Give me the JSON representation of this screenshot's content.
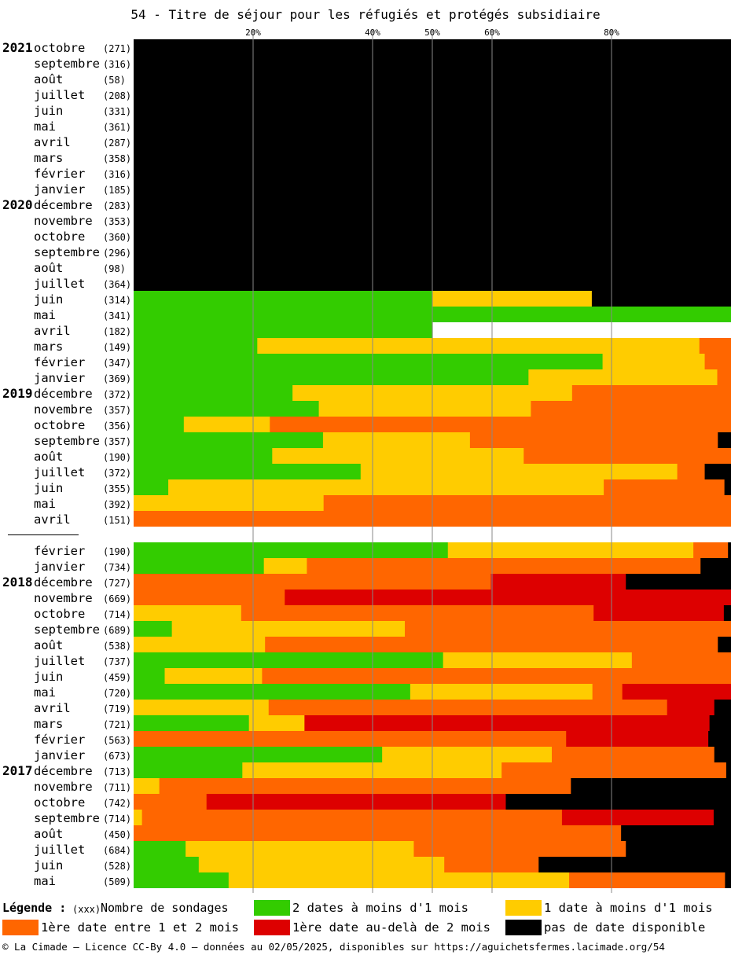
{
  "title": "54 - Titre de séjour pour les réfugiés et protégés subsidiaire",
  "legend": {
    "title": "Légende :",
    "count_marker": "(xxx)",
    "count_label": "Nombre de sondages",
    "items": [
      {
        "label": "2 dates à moins d'1 mois",
        "color": "#33cc00"
      },
      {
        "label": "1 date à moins d'1 mois",
        "color": "#ffcc00"
      },
      {
        "label": "1ère date entre 1 et 2 mois",
        "color": "#ff6600"
      },
      {
        "label": "1ère date au-delà de 2 mois",
        "color": "#dd0000"
      },
      {
        "label": "pas de date disponible",
        "color": "#000000"
      }
    ]
  },
  "footer": "© La Cimade – Licence CC-By 4.0 – données au 02/05/2025, disponibles sur https://aguichetsfermes.lacimade.org/54",
  "chart_data": {
    "type": "bar",
    "orientation": "horizontal-stacked-100",
    "title": "54 - Titre de séjour pour les réfugiés et protégés subsidiaire",
    "xlim": [
      0,
      100
    ],
    "xticks": [
      {
        "value": 20,
        "label": "20%"
      },
      {
        "value": 40,
        "label": "40%"
      },
      {
        "value": 50,
        "label": "50%"
      },
      {
        "value": 60,
        "label": "60%"
      },
      {
        "value": 80,
        "label": "80%"
      }
    ],
    "grid": "vertical lines at ticks",
    "series": [
      {
        "name": "2 dates à moins d'1 mois",
        "color": "#33cc00"
      },
      {
        "name": "1 date à moins d'1 mois",
        "color": "#ffcc00"
      },
      {
        "name": "1ère date entre 1 et 2 mois",
        "color": "#ff6600"
      },
      {
        "name": "1ère date au-delà de 2 mois",
        "color": "#dd0000"
      },
      {
        "name": "pas de date disponible",
        "color": "#000000"
      }
    ],
    "rows": [
      {
        "year": "2021",
        "month": "octobre",
        "count": "(271)",
        "values": [
          0,
          0,
          0,
          0,
          100
        ]
      },
      {
        "year": "",
        "month": "septembre",
        "count": "(316)",
        "values": [
          0,
          0,
          0,
          0,
          100
        ]
      },
      {
        "year": "",
        "month": "août",
        "count": "(58)",
        "values": [
          0,
          0,
          0,
          0,
          100
        ]
      },
      {
        "year": "",
        "month": "juillet",
        "count": "(208)",
        "values": [
          0,
          0,
          0,
          0,
          100
        ]
      },
      {
        "year": "",
        "month": "juin",
        "count": "(331)",
        "values": [
          0,
          0,
          0,
          0,
          100
        ]
      },
      {
        "year": "",
        "month": "mai",
        "count": "(361)",
        "values": [
          0,
          0,
          0,
          0,
          100
        ]
      },
      {
        "year": "",
        "month": "avril",
        "count": "(287)",
        "values": [
          0,
          0,
          0,
          0,
          100
        ]
      },
      {
        "year": "",
        "month": "mars",
        "count": "(358)",
        "values": [
          0,
          0,
          0,
          0,
          100
        ]
      },
      {
        "year": "",
        "month": "février",
        "count": "(316)",
        "values": [
          0,
          0,
          0,
          0,
          100
        ]
      },
      {
        "year": "",
        "month": "janvier",
        "count": "(185)",
        "values": [
          0,
          0,
          0,
          0,
          100
        ]
      },
      {
        "year": "2020",
        "month": "décembre",
        "count": "(283)",
        "values": [
          0,
          0,
          0,
          0,
          100
        ]
      },
      {
        "year": "",
        "month": "novembre",
        "count": "(353)",
        "values": [
          0,
          0,
          0,
          0,
          100
        ]
      },
      {
        "year": "",
        "month": "octobre",
        "count": "(360)",
        "values": [
          0,
          0,
          0,
          0,
          100
        ]
      },
      {
        "year": "",
        "month": "septembre",
        "count": "(296)",
        "values": [
          0,
          0,
          0,
          0,
          100
        ]
      },
      {
        "year": "",
        "month": "août",
        "count": "(98)",
        "values": [
          0,
          0,
          0,
          0,
          100
        ]
      },
      {
        "year": "",
        "month": "juillet",
        "count": "(364)",
        "values": [
          0,
          0,
          0,
          0,
          100
        ]
      },
      {
        "year": "",
        "month": "juin",
        "count": "(314)",
        "values": [
          50.0,
          26.7,
          0,
          0,
          23.3
        ]
      },
      {
        "year": "",
        "month": "mai",
        "count": "(341)",
        "values": [
          100,
          0,
          0,
          0,
          0
        ]
      },
      {
        "year": "",
        "month": "avril",
        "count": "(182)",
        "values": [
          50.0,
          0,
          0,
          0,
          0
        ]
      },
      {
        "year": "",
        "month": "mars",
        "count": "(149)",
        "values": [
          20.7,
          74.0,
          5.3,
          0,
          0
        ]
      },
      {
        "year": "",
        "month": "février",
        "count": "(347)",
        "values": [
          78.5,
          17.1,
          4.4,
          0,
          0
        ]
      },
      {
        "year": "",
        "month": "janvier",
        "count": "(369)",
        "values": [
          66.1,
          31.6,
          2.3,
          0,
          0
        ]
      },
      {
        "year": "2019",
        "month": "décembre",
        "count": "(372)",
        "values": [
          26.6,
          46.8,
          26.6,
          0,
          0
        ]
      },
      {
        "year": "",
        "month": "novembre",
        "count": "(357)",
        "values": [
          31.0,
          35.5,
          33.5,
          0,
          0
        ]
      },
      {
        "year": "",
        "month": "octobre",
        "count": "(356)",
        "values": [
          8.4,
          14.4,
          77.2,
          0,
          0
        ]
      },
      {
        "year": "",
        "month": "septembre",
        "count": "(357)",
        "values": [
          31.7,
          24.6,
          41.5,
          0,
          2.2
        ]
      },
      {
        "year": "",
        "month": "août",
        "count": "(190)",
        "values": [
          23.2,
          42.1,
          34.7,
          0,
          0
        ]
      },
      {
        "year": "",
        "month": "juillet",
        "count": "(372)",
        "values": [
          38.0,
          53.0,
          4.6,
          0,
          4.4
        ]
      },
      {
        "year": "",
        "month": "juin",
        "count": "(355)",
        "values": [
          5.8,
          72.9,
          20.2,
          0,
          1.1
        ]
      },
      {
        "year": "",
        "month": "mai",
        "count": "(392)",
        "values": [
          0,
          31.8,
          68.2,
          0,
          0
        ]
      },
      {
        "year": "",
        "month": "avril",
        "count": "(151)",
        "values": [
          0,
          0,
          100,
          0,
          0
        ]
      },
      {
        "gap": true
      },
      {
        "year": "",
        "month": "février",
        "count": "(190)",
        "values": [
          52.6,
          41.1,
          5.8,
          0,
          0.5
        ]
      },
      {
        "year": "",
        "month": "janvier",
        "count": "(734)",
        "values": [
          21.8,
          7.2,
          65.9,
          0,
          5.1
        ]
      },
      {
        "year": "2018",
        "month": "décembre",
        "count": "(727)",
        "values": [
          0,
          0,
          59.8,
          22.6,
          17.6
        ]
      },
      {
        "year": "",
        "month": "novembre",
        "count": "(669)",
        "values": [
          0,
          0,
          25.3,
          74.7,
          0
        ]
      },
      {
        "year": "",
        "month": "octobre",
        "count": "(714)",
        "values": [
          0,
          18.0,
          59.0,
          21.8,
          1.2
        ]
      },
      {
        "year": "",
        "month": "septembre",
        "count": "(689)",
        "values": [
          6.4,
          39.0,
          54.6,
          0,
          0
        ]
      },
      {
        "year": "",
        "month": "août",
        "count": "(538)",
        "values": [
          0,
          22.0,
          75.8,
          0,
          2.2
        ]
      },
      {
        "year": "",
        "month": "juillet",
        "count": "(737)",
        "values": [
          51.8,
          31.6,
          16.6,
          0,
          0
        ]
      },
      {
        "year": "",
        "month": "juin",
        "count": "(459)",
        "values": [
          5.2,
          16.3,
          78.5,
          0,
          0
        ]
      },
      {
        "year": "",
        "month": "mai",
        "count": "(720)",
        "values": [
          46.3,
          30.5,
          5.0,
          18.2,
          0
        ]
      },
      {
        "year": "",
        "month": "avril",
        "count": "(719)",
        "values": [
          0,
          22.6,
          66.7,
          7.9,
          2.8
        ]
      },
      {
        "year": "",
        "month": "mars",
        "count": "(721)",
        "values": [
          19.3,
          9.3,
          0,
          67.8,
          3.6
        ]
      },
      {
        "year": "",
        "month": "février",
        "count": "(563)",
        "values": [
          0,
          0,
          72.4,
          23.8,
          3.8
        ]
      },
      {
        "year": "",
        "month": "janvier",
        "count": "(673)",
        "values": [
          41.6,
          28.4,
          27.2,
          0,
          2.8
        ]
      },
      {
        "year": "2017",
        "month": "décembre",
        "count": "(713)",
        "values": [
          18.2,
          43.4,
          37.6,
          0,
          0.8
        ]
      },
      {
        "year": "",
        "month": "novembre",
        "count": "(711)",
        "values": [
          0,
          4.3,
          68.9,
          0,
          26.8
        ]
      },
      {
        "year": "",
        "month": "octobre",
        "count": "(742)",
        "values": [
          0,
          0,
          12.2,
          50.1,
          37.7
        ]
      },
      {
        "year": "",
        "month": "septembre",
        "count": "(714)",
        "values": [
          0,
          1.4,
          70.3,
          25.4,
          2.9
        ]
      },
      {
        "year": "",
        "month": "août",
        "count": "(450)",
        "values": [
          0,
          0,
          81.6,
          0,
          18.4
        ]
      },
      {
        "year": "",
        "month": "juillet",
        "count": "(684)",
        "values": [
          8.7,
          38.2,
          35.5,
          0,
          17.6
        ]
      },
      {
        "year": "",
        "month": "juin",
        "count": "(528)",
        "values": [
          10.9,
          41.1,
          15.8,
          0,
          32.2
        ]
      },
      {
        "year": "",
        "month": "mai",
        "count": "(509)",
        "values": [
          15.9,
          57.0,
          26.1,
          0,
          1.0
        ]
      }
    ]
  }
}
